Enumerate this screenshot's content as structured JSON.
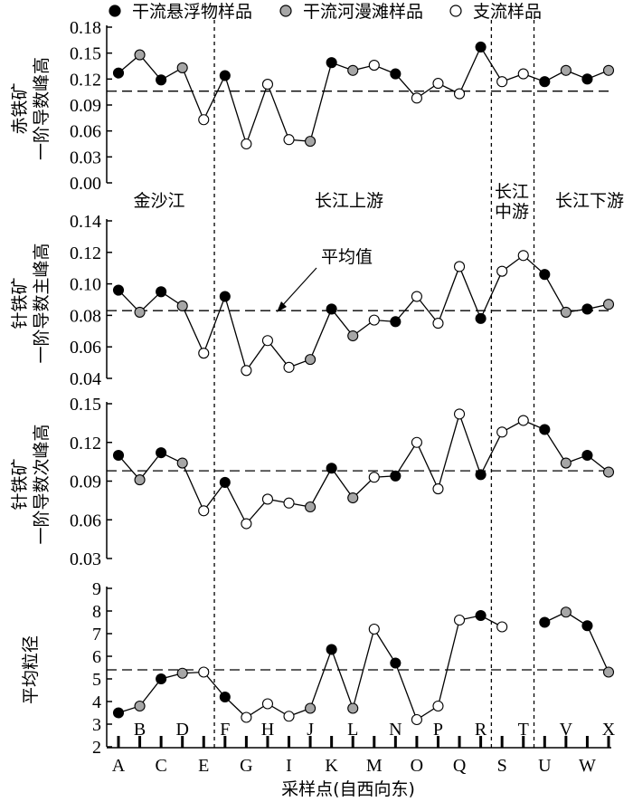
{
  "chart_data": {
    "type": "line",
    "legend": {
      "position": "top",
      "entries": [
        {
          "label": "干流悬浮物样品",
          "marker": "black"
        },
        {
          "label": "干流河漫滩样品",
          "marker": "gray"
        },
        {
          "label": "支流样品",
          "marker": "white"
        }
      ]
    },
    "marker_colors": {
      "black": "#000000",
      "gray": "#a6a6a6",
      "white": "#ffffff"
    },
    "categories": [
      "A",
      "B",
      "C",
      "D",
      "E",
      "F",
      "G",
      "H",
      "I",
      "J",
      "K",
      "L",
      "M",
      "N",
      "O",
      "P",
      "Q",
      "R",
      "S",
      "T",
      "U",
      "V",
      "W",
      "X"
    ],
    "sample_types": [
      "black",
      "gray",
      "black",
      "gray",
      "white",
      "black",
      "white",
      "white",
      "white",
      "gray",
      "black",
      "gray",
      "white",
      "black",
      "white",
      "white",
      "white",
      "black",
      "white",
      "white",
      "black",
      "gray",
      "black",
      "gray"
    ],
    "xlabel": "采样点(自西向东)",
    "region_labels": [
      {
        "text": "金沙江"
      },
      {
        "text": "长江上游"
      },
      {
        "text": "长江",
        "text2": "中游"
      },
      {
        "text": "长江下游"
      }
    ],
    "region_dividers_after": [
      "E",
      "R",
      "T"
    ],
    "mean_annotation": "平均值",
    "panels": [
      {
        "ylabel_line1": "赤铁矿",
        "ylabel_line2": "一阶导数峰高",
        "ylim": [
          0.0,
          0.18
        ],
        "yticks": [
          "0.00",
          "0.03",
          "0.06",
          "0.09",
          "0.12",
          "0.15",
          "0.18"
        ],
        "mean": 0.106,
        "values": [
          0.127,
          0.148,
          0.119,
          0.133,
          0.073,
          0.124,
          0.045,
          0.114,
          0.05,
          0.048,
          0.139,
          0.13,
          0.136,
          0.126,
          0.098,
          0.115,
          0.103,
          0.157,
          0.117,
          0.126,
          0.117,
          0.13,
          0.12,
          0.13
        ]
      },
      {
        "ylabel_line1": "针铁矿",
        "ylabel_line2": "一阶导数主峰高",
        "ylim": [
          0.04,
          0.14
        ],
        "yticks": [
          "0.04",
          "0.06",
          "0.08",
          "0.10",
          "0.12",
          "0.14"
        ],
        "mean": 0.083,
        "values": [
          0.096,
          0.082,
          0.095,
          0.086,
          0.056,
          0.092,
          0.045,
          0.064,
          0.047,
          0.052,
          0.084,
          0.067,
          0.077,
          0.076,
          0.092,
          0.075,
          0.111,
          0.078,
          0.108,
          0.118,
          0.106,
          0.082,
          0.084,
          0.087
        ]
      },
      {
        "ylabel_line1": "针铁矿",
        "ylabel_line2": "一阶导数次峰高",
        "ylim": [
          0.03,
          0.15
        ],
        "yticks": [
          "0.03",
          "0.06",
          "0.09",
          "0.12",
          "0.15"
        ],
        "mean": 0.098,
        "values": [
          0.11,
          0.091,
          0.112,
          0.104,
          0.067,
          0.089,
          0.057,
          0.076,
          0.073,
          0.07,
          0.1,
          0.077,
          0.093,
          0.094,
          0.12,
          0.084,
          0.142,
          0.095,
          0.128,
          0.137,
          0.13,
          0.104,
          0.11,
          0.097
        ]
      },
      {
        "ylabel_line1": "平均粒径",
        "ylabel_line2": "",
        "ylim": [
          2,
          9
        ],
        "yticks": [
          "2",
          "3",
          "4",
          "5",
          "6",
          "7",
          "8",
          "9"
        ],
        "mean": 5.4,
        "values": [
          3.5,
          3.8,
          5.0,
          5.25,
          5.3,
          4.2,
          3.3,
          3.9,
          3.35,
          3.7,
          6.3,
          3.7,
          7.2,
          5.7,
          3.2,
          3.8,
          7.6,
          7.8,
          7.3,
          null,
          7.5,
          7.95,
          7.35,
          5.3
        ]
      }
    ]
  }
}
